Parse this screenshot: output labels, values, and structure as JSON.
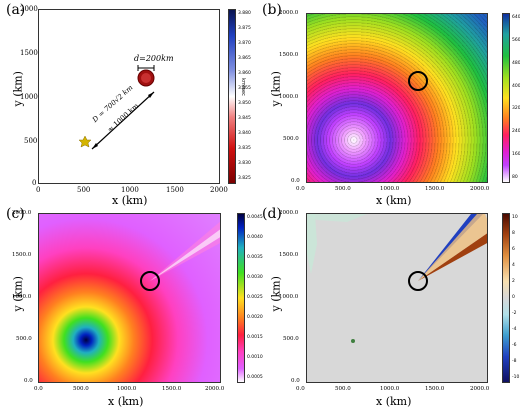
{
  "panels": {
    "a": {
      "label": "(a)",
      "xlabel": "x (km)",
      "ylabel": "y (km)",
      "xticks": [
        "0",
        "500",
        "1000",
        "1500",
        "2000"
      ],
      "yticks": [
        "2000",
        "1500",
        "1000",
        "500",
        "0"
      ],
      "annotation_d": "d=200km",
      "annotation_D": "D = 700√2 km",
      "annotation_approx": "≈ 1000 km",
      "cbar_ticks": [
        "3.880",
        "3.875",
        "3.870",
        "3.865",
        "3.860",
        "3.855",
        "3.850",
        "3.845",
        "3.840",
        "3.835",
        "3.830",
        "3.825"
      ],
      "cbar_unit": "km/sec"
    },
    "b": {
      "label": "(b)",
      "xlabel": "x (km)",
      "ylabel": "y (km)",
      "xticks": [
        "0.0",
        "500.0",
        "1000.0",
        "1500.0",
        "2000.0"
      ],
      "yticks": [
        "2000.0",
        "1500.0",
        "1000.0",
        "500.0",
        "0.0"
      ],
      "cbar_ticks": [
        "640",
        "560",
        "480",
        "400",
        "320",
        "240",
        "160",
        "80"
      ]
    },
    "c": {
      "label": "(c)",
      "xlabel": "x (km)",
      "ylabel": "y (km)",
      "xticks": [
        "0.0",
        "500.0",
        "1000.0",
        "1500.0",
        "2000.0"
      ],
      "yticks": [
        "2000.0",
        "1500.0",
        "1000.0",
        "500.0",
        "0.0"
      ],
      "cbar_ticks": [
        "0.0045",
        "0.0040",
        "0.0035",
        "0.0030",
        "0.0025",
        "0.0020",
        "0.0015",
        "0.0010",
        "0.0005"
      ]
    },
    "d": {
      "label": "(d)",
      "xlabel": "x (km)",
      "ylabel": "y (km)",
      "xticks": [
        "0.0",
        "500.0",
        "1000.0",
        "1500.0",
        "2000.0"
      ],
      "yticks": [
        "2000.0",
        "1500.0",
        "1000.0",
        "500.0",
        "0.0"
      ],
      "cbar_ticks": [
        "10",
        "8",
        "6",
        "4",
        "2",
        "0",
        "-2",
        "-4",
        "-6",
        "-8",
        "-10"
      ]
    }
  }
}
